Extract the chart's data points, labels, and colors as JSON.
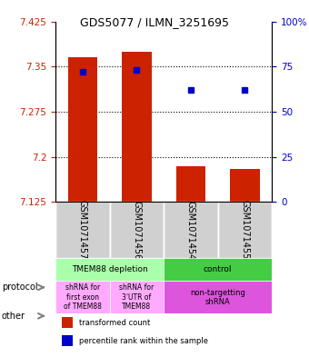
{
  "title": "GDS5077 / ILMN_3251695",
  "samples": [
    "GSM1071457",
    "GSM1071456",
    "GSM1071454",
    "GSM1071455"
  ],
  "bar_bottoms": [
    7.125,
    7.125,
    7.125,
    7.125
  ],
  "bar_tops": [
    7.365,
    7.375,
    7.185,
    7.18
  ],
  "percentile_values": [
    72,
    73,
    62,
    62
  ],
  "ylim_left": [
    7.125,
    7.425
  ],
  "ylim_right": [
    0,
    100
  ],
  "yticks_left": [
    7.125,
    7.2,
    7.275,
    7.35,
    7.425
  ],
  "yticks_right": [
    0,
    25,
    50,
    75,
    100
  ],
  "ytick_labels_right": [
    "0",
    "25",
    "50",
    "75",
    "100%"
  ],
  "bar_color": "#cc2200",
  "dot_color": "#0000cc",
  "grid_color": "#000000",
  "bg_color": "#ffffff",
  "plot_bg": "#ffffff",
  "protocol_labels": [
    "TMEM88 depletion",
    "control"
  ],
  "protocol_colors": [
    "#ccffcc",
    "#55dd55"
  ],
  "other_labels": [
    "shRNA for\nfirst exon\nof TMEM88",
    "shRNA for\n3'UTR of\nTMEM88",
    "non-targetting\nshRNA"
  ],
  "other_colors": [
    "#ffccff",
    "#ffccff",
    "#ee66ee"
  ],
  "label_protocol": "protocol",
  "label_other": "other",
  "legend_red": "transformed count",
  "legend_blue": "percentile rank within the sample",
  "tick_fontsize": 7.5,
  "sample_label_fontsize": 7,
  "annotation_fontsize": 8
}
